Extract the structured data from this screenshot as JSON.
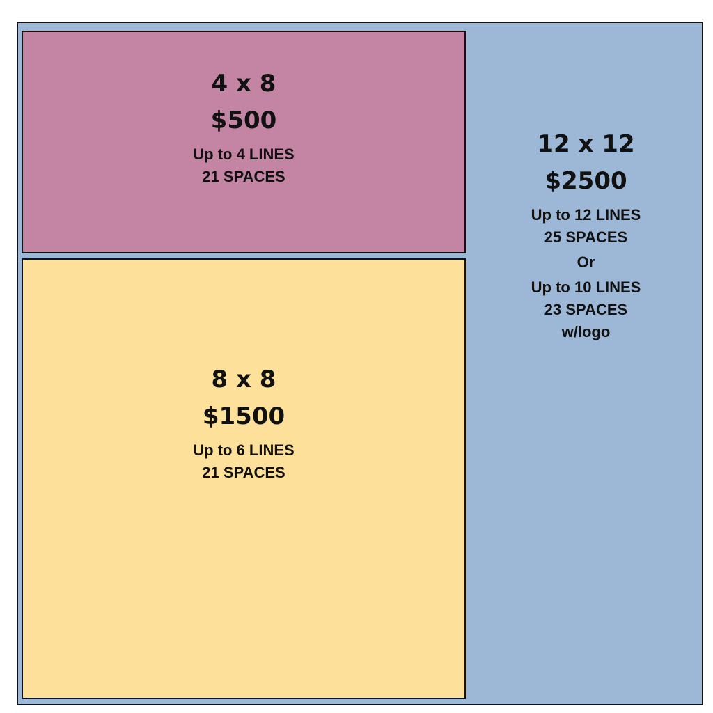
{
  "panels": [
    {
      "size": "4 x 8",
      "price": "$500",
      "lines": [
        "Up to 4 LINES",
        "21 SPACES"
      ]
    },
    {
      "size": "8 x 8",
      "price": "$1500",
      "lines": [
        "Up to 6 LINES",
        "21 SPACES"
      ]
    },
    {
      "size": "12 x 12",
      "price": "$2500",
      "lines": [
        "Up to 12 LINES",
        "25 SPACES",
        "Or",
        "Up to 10 LINES",
        "23 SPACES",
        "w/logo"
      ]
    }
  ]
}
